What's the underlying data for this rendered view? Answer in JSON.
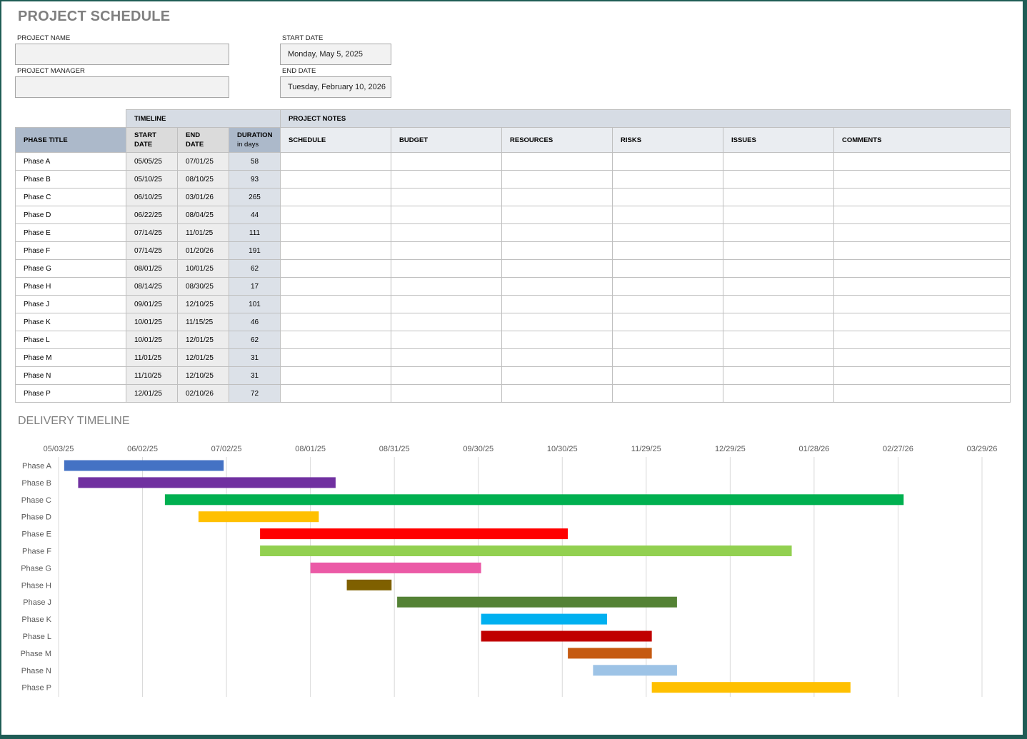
{
  "header": {
    "title": "PROJECT SCHEDULE",
    "project_name_label": "PROJECT NAME",
    "project_name_value": "",
    "project_manager_label": "PROJECT MANAGER",
    "project_manager_value": "",
    "start_date_label": "START DATE",
    "start_date_value": "Monday, May 5, 2025",
    "end_date_label": "END DATE",
    "end_date_value": "Tuesday, February 10, 2026"
  },
  "table": {
    "group_timeline": "TIMELINE",
    "group_notes": "PROJECT NOTES",
    "col_phase": "PHASE TITLE",
    "col_start_1": "START",
    "col_start_2": "DATE",
    "col_end_1": "END",
    "col_end_2": "DATE",
    "col_duration_1": "DURATION",
    "col_duration_2": "in days",
    "col_schedule": "SCHEDULE",
    "col_budget": "BUDGET",
    "col_resources": "RESOURCES",
    "col_risks": "RISKS",
    "col_issues": "ISSUES",
    "col_comments": "COMMENTS",
    "rows": [
      {
        "phase": "Phase A",
        "start": "05/05/25",
        "end": "07/01/25",
        "duration": "58"
      },
      {
        "phase": "Phase B",
        "start": "05/10/25",
        "end": "08/10/25",
        "duration": "93"
      },
      {
        "phase": "Phase C",
        "start": "06/10/25",
        "end": "03/01/26",
        "duration": "265"
      },
      {
        "phase": "Phase D",
        "start": "06/22/25",
        "end": "08/04/25",
        "duration": "44"
      },
      {
        "phase": "Phase E",
        "start": "07/14/25",
        "end": "11/01/25",
        "duration": "111"
      },
      {
        "phase": "Phase F",
        "start": "07/14/25",
        "end": "01/20/26",
        "duration": "191"
      },
      {
        "phase": "Phase G",
        "start": "08/01/25",
        "end": "10/01/25",
        "duration": "62"
      },
      {
        "phase": "Phase H",
        "start": "08/14/25",
        "end": "08/30/25",
        "duration": "17"
      },
      {
        "phase": "Phase J",
        "start": "09/01/25",
        "end": "12/10/25",
        "duration": "101"
      },
      {
        "phase": "Phase K",
        "start": "10/01/25",
        "end": "11/15/25",
        "duration": "46"
      },
      {
        "phase": "Phase L",
        "start": "10/01/25",
        "end": "12/01/25",
        "duration": "62"
      },
      {
        "phase": "Phase M",
        "start": "11/01/25",
        "end": "12/01/25",
        "duration": "31"
      },
      {
        "phase": "Phase N",
        "start": "11/10/25",
        "end": "12/10/25",
        "duration": "31"
      },
      {
        "phase": "Phase P",
        "start": "12/01/25",
        "end": "02/10/26",
        "duration": "72"
      }
    ]
  },
  "chart_data": {
    "type": "bar",
    "subtype": "gantt",
    "title": "DELIVERY TIMELINE",
    "x_ticks": [
      "05/03/25",
      "06/02/25",
      "07/02/25",
      "08/01/25",
      "08/31/25",
      "09/30/25",
      "10/30/25",
      "11/29/25",
      "12/29/25",
      "01/28/26",
      "02/27/26",
      "03/29/26"
    ],
    "xlim": [
      "2025-05-03",
      "2026-03-29"
    ],
    "grid": true,
    "categories": [
      "Phase A",
      "Phase B",
      "Phase C",
      "Phase D",
      "Phase E",
      "Phase F",
      "Phase G",
      "Phase H",
      "Phase J",
      "Phase K",
      "Phase L",
      "Phase M",
      "Phase N",
      "Phase P"
    ],
    "tasks": [
      {
        "label": "Phase A",
        "start": "2025-05-05",
        "end": "2025-07-01",
        "color": "#4472c4"
      },
      {
        "label": "Phase B",
        "start": "2025-05-10",
        "end": "2025-08-10",
        "color": "#7030a0"
      },
      {
        "label": "Phase C",
        "start": "2025-06-10",
        "end": "2026-03-01",
        "color": "#00b050"
      },
      {
        "label": "Phase D",
        "start": "2025-06-22",
        "end": "2025-08-04",
        "color": "#ffc000"
      },
      {
        "label": "Phase E",
        "start": "2025-07-14",
        "end": "2025-11-01",
        "color": "#ff0000"
      },
      {
        "label": "Phase F",
        "start": "2025-07-14",
        "end": "2026-01-20",
        "color": "#92d050"
      },
      {
        "label": "Phase G",
        "start": "2025-08-01",
        "end": "2025-10-01",
        "color": "#eb5aa6"
      },
      {
        "label": "Phase H",
        "start": "2025-08-14",
        "end": "2025-08-30",
        "color": "#7f6000"
      },
      {
        "label": "Phase J",
        "start": "2025-09-01",
        "end": "2025-12-10",
        "color": "#548235"
      },
      {
        "label": "Phase K",
        "start": "2025-10-01",
        "end": "2025-11-15",
        "color": "#00b0f0"
      },
      {
        "label": "Phase L",
        "start": "2025-10-01",
        "end": "2025-12-01",
        "color": "#c00000"
      },
      {
        "label": "Phase M",
        "start": "2025-11-01",
        "end": "2025-12-01",
        "color": "#c55a11"
      },
      {
        "label": "Phase N",
        "start": "2025-11-10",
        "end": "2025-12-10",
        "color": "#9dc3e6"
      },
      {
        "label": "Phase P",
        "start": "2025-12-01",
        "end": "2026-02-10",
        "color": "#ffc000"
      }
    ]
  }
}
